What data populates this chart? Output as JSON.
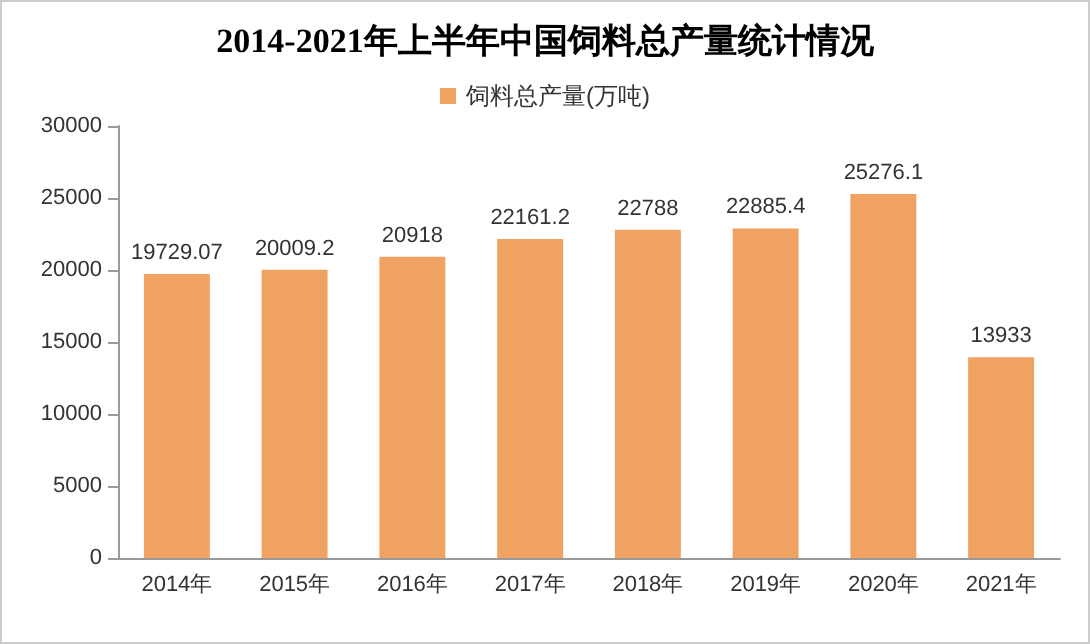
{
  "chart_data": {
    "type": "bar",
    "title": "2014-2021年上半年中国饲料总产量统计情况",
    "categories": [
      "2014年",
      "2015年",
      "2016年",
      "2017年",
      "2018年",
      "2019年",
      "2020年",
      "2021年"
    ],
    "series": [
      {
        "name": "饲料总产量(万吨)",
        "color": "#f0a263",
        "values": [
          19729.07,
          20009.2,
          20918,
          22161.2,
          22788,
          22885.4,
          25276.1,
          13933
        ]
      }
    ],
    "ylim": [
      0,
      30000
    ],
    "yticks": [
      0,
      5000,
      10000,
      15000,
      20000,
      25000,
      30000
    ],
    "grid": false,
    "legend": "top",
    "data_labels": true
  }
}
